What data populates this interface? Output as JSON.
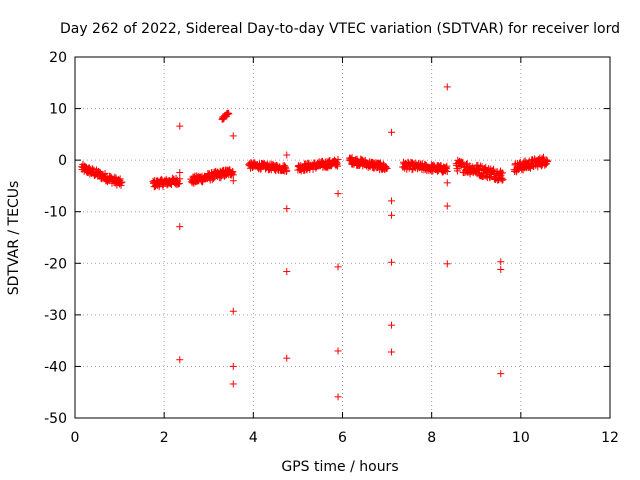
{
  "chart_data": {
    "type": "scatter",
    "title": "Day 262 of 2022, Sidereal Day-to-day VTEC variation (SDTVAR) for receiver lord",
    "xlabel": "GPS time / hours",
    "ylabel": "SDTVAR / TECUs",
    "xlim": [
      0,
      12
    ],
    "ylim": [
      -50,
      20
    ],
    "xticks": [
      0,
      2,
      4,
      6,
      8,
      10,
      12
    ],
    "yticks": [
      -50,
      -40,
      -30,
      -20,
      -10,
      0,
      10,
      20
    ],
    "grid": true,
    "marker": "+",
    "color": "#ff0000",
    "clusters": [
      {
        "x_start": 0.15,
        "x_end": 1.05,
        "y_start": -1.5,
        "y_end": -4.5,
        "spread": 1.5
      },
      {
        "x_start": 1.75,
        "x_end": 2.35,
        "y_start": -4.6,
        "y_end": -4.0,
        "spread": 1.4
      },
      {
        "x_start": 2.6,
        "x_end": 3.55,
        "y_start": -4.0,
        "y_end": -2.2,
        "spread": 1.5
      },
      {
        "x_start": 3.3,
        "x_end": 3.45,
        "y_start": 8.0,
        "y_end": 9.2,
        "spread": 0.6
      },
      {
        "x_start": 3.9,
        "x_end": 4.75,
        "y_start": -1.0,
        "y_end": -1.6,
        "spread": 1.2
      },
      {
        "x_start": 5.0,
        "x_end": 5.9,
        "y_start": -1.5,
        "y_end": -0.5,
        "spread": 1.4
      },
      {
        "x_start": 6.15,
        "x_end": 7.0,
        "y_start": 0.0,
        "y_end": -1.5,
        "spread": 1.4
      },
      {
        "x_start": 7.35,
        "x_end": 8.35,
        "y_start": -1.0,
        "y_end": -1.8,
        "spread": 1.4
      },
      {
        "x_start": 8.55,
        "x_end": 9.6,
        "y_start": -1.0,
        "y_end": -3.0,
        "spread": 2.2
      },
      {
        "x_start": 9.85,
        "x_end": 10.6,
        "y_start": -1.5,
        "y_end": 0.0,
        "spread": 1.8
      }
    ],
    "outliers": [
      [
        2.35,
        6.6
      ],
      [
        2.35,
        -2.4
      ],
      [
        2.35,
        -12.9
      ],
      [
        2.35,
        -38.7
      ],
      [
        3.55,
        4.7
      ],
      [
        3.55,
        -4.0
      ],
      [
        3.55,
        -29.3
      ],
      [
        3.55,
        -40.0
      ],
      [
        3.55,
        -43.4
      ],
      [
        4.75,
        1.0
      ],
      [
        4.75,
        -9.4
      ],
      [
        4.75,
        -21.6
      ],
      [
        4.75,
        -38.4
      ],
      [
        5.9,
        -6.5
      ],
      [
        5.9,
        -20.7
      ],
      [
        5.9,
        -37.0
      ],
      [
        5.9,
        -45.9
      ],
      [
        7.1,
        5.4
      ],
      [
        7.1,
        -7.9
      ],
      [
        7.1,
        -10.7
      ],
      [
        7.1,
        -19.8
      ],
      [
        7.1,
        -32.0
      ],
      [
        7.1,
        -37.2
      ],
      [
        8.35,
        14.2
      ],
      [
        8.35,
        -4.4
      ],
      [
        8.35,
        -8.9
      ],
      [
        8.35,
        -20.1
      ],
      [
        9.55,
        -3.6
      ],
      [
        9.55,
        -19.7
      ],
      [
        9.55,
        -21.2
      ],
      [
        9.55,
        -41.4
      ]
    ]
  }
}
